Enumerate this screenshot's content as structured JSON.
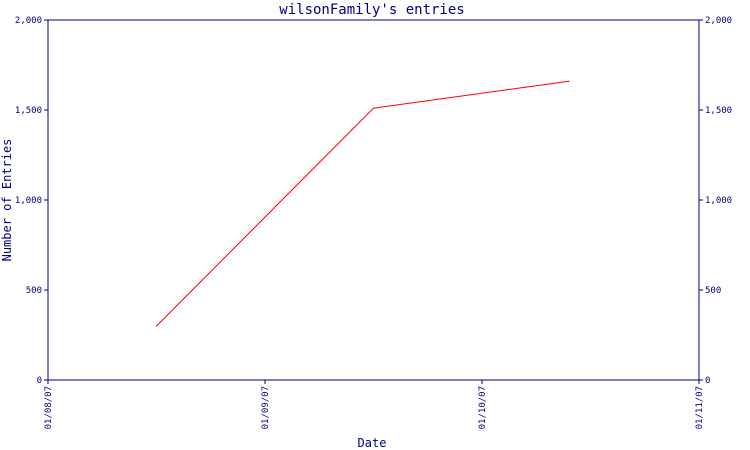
{
  "chart_data": {
    "type": "line",
    "title": "wilsonFamily's entries",
    "xlabel": "Date",
    "ylabel": "Number of Entries",
    "x_ticks": [
      "01/08/07",
      "01/09/07",
      "01/10/07",
      "01/11/07"
    ],
    "x_range": [
      "01/08/07",
      "01/11/07"
    ],
    "y_ticks": [
      "0",
      "500",
      "1,000",
      "1,500",
      "2,000"
    ],
    "y_tick_values": [
      0,
      500,
      1000,
      1500,
      2000
    ],
    "ylim": [
      0,
      2000
    ],
    "grid": false,
    "y_axis_both_sides": true,
    "series": [
      {
        "color": "#ff0000",
        "points": [
          {
            "x": "01/08/07 + 0.5 mo",
            "x_pos": 0.5,
            "y": 300
          },
          {
            "x": "01/09/07 + 0.5 mo",
            "x_pos": 1.5,
            "y": 1510
          },
          {
            "x": "01/10/07 + 0.4 mo",
            "x_pos": 2.4,
            "y": 1660
          }
        ]
      }
    ]
  }
}
